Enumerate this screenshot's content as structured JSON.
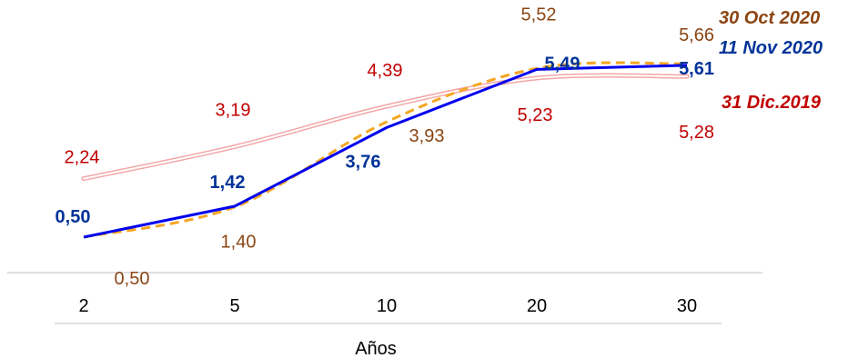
{
  "chart_data": {
    "type": "line",
    "xlabel": "Años",
    "categories": [
      "2",
      "5",
      "10",
      "20",
      "30"
    ],
    "series": [
      {
        "name": "31 Dic.2019",
        "values": [
          2.24,
          3.19,
          4.39,
          5.23,
          5.28
        ],
        "labels": [
          "2,24",
          "3,19",
          "4,39",
          "5,23",
          "5,28"
        ],
        "color": "#c00000",
        "style": "double-pink"
      },
      {
        "name": "30 Oct 2020",
        "values": [
          0.5,
          1.4,
          3.93,
          5.52,
          5.66
        ],
        "labels": [
          "0,50",
          "1,40",
          "3,93",
          "5,52",
          "5,66"
        ],
        "color": "#8b4513",
        "style": "dashed-orange"
      },
      {
        "name": "11 Nov 2020",
        "values": [
          0.5,
          1.42,
          3.76,
          5.49,
          5.61
        ],
        "labels": [
          "0,50",
          "1,42",
          "3,76",
          "5,49",
          "5,61"
        ],
        "color": "#003399",
        "style": "solid-blue",
        "bold_labels": true
      }
    ],
    "colors": {
      "dic2019_line": "#f4a6a6",
      "dic2019_text": "#c00000",
      "oct2020_line": "#f5a623",
      "oct2020_text": "#8b4513",
      "nov2020_line": "#0000ee",
      "nov2020_text": "#003399",
      "axis": "#bfbfbf"
    }
  }
}
